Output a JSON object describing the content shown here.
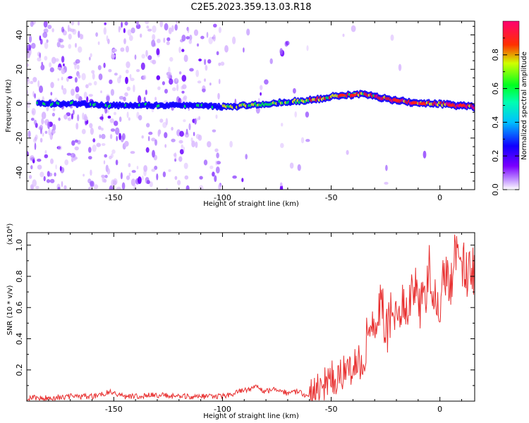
{
  "title": "C2E5.2023.359.13.03.R18",
  "colors": {
    "snr_line": "#e83030",
    "background": "#ffffff",
    "axis": "#000000",
    "colormap": [
      "#ffffff",
      "#d9b8ff",
      "#a060ff",
      "#6a00ff",
      "#1000ff",
      "#00d8ff",
      "#00ff40",
      "#f0ff00",
      "#ff2020",
      "#ff0080"
    ]
  },
  "chart_data": [
    {
      "type": "heatmap",
      "name": "spectrogram",
      "title": "C2E5.2023.359.13.03.R18",
      "xlabel": "Height of straight line (km)",
      "ylabel": "Frequency (Hz)",
      "xlim": [
        -190,
        16
      ],
      "ylim": [
        -50,
        48
      ],
      "x_ticks": [
        -150,
        -100,
        -50,
        0
      ],
      "y_ticks": [
        -40,
        -20,
        0,
        20,
        40
      ],
      "x_tick_labels": [
        "-150",
        "-100",
        "-50",
        "0"
      ],
      "y_tick_labels": [
        "-40",
        "-20",
        "0",
        "20",
        "40"
      ],
      "signal_track": {
        "x": [
          -185,
          -170,
          -150,
          -130,
          -110,
          -100,
          -90,
          -80,
          -70,
          -60,
          -50,
          -45,
          -40,
          -35,
          -30,
          -25,
          -20,
          -15,
          -10,
          -5,
          0,
          5,
          10,
          16
        ],
        "frequency": [
          0,
          0,
          -1,
          -1,
          -1,
          -2,
          -1,
          0,
          1,
          2,
          4,
          5,
          5,
          6,
          4,
          3,
          2,
          1,
          0,
          0,
          0,
          -1,
          -1,
          -2
        ]
      },
      "colorbar": {
        "label": "Normalized spectral amplitude",
        "range": [
          0,
          1
        ],
        "ticks": [
          0.0,
          0.2,
          0.4,
          0.6,
          0.8
        ],
        "tick_labels": [
          "0.0",
          "0.2",
          "0.4",
          "0.6",
          "0.8"
        ]
      }
    },
    {
      "type": "line",
      "name": "snr",
      "xlabel": "Height of straight line (km)",
      "ylabel": "SNR (10 * v/v)",
      "y_scale_label": "(x10⁴)",
      "xlim": [
        -190,
        16
      ],
      "ylim": [
        0,
        1.08
      ],
      "x_ticks": [
        -150,
        -100,
        -50,
        0
      ],
      "y_ticks": [
        0.2,
        0.4,
        0.6,
        0.8,
        1.0
      ],
      "x_tick_labels": [
        "-150",
        "-100",
        "-50",
        "0"
      ],
      "y_tick_labels": [
        "0.2",
        "0.4",
        "0.6",
        "0.8",
        "1.0"
      ],
      "series": [
        {
          "x": [
            -190,
            -180,
            -170,
            -160,
            -152,
            -145,
            -140,
            -130,
            -120,
            -110,
            -100,
            -95,
            -90,
            -85,
            -80,
            -75,
            -70,
            -65,
            -60,
            -55,
            -50,
            -47,
            -45,
            -42,
            -40,
            -37,
            -35,
            -33,
            -31,
            -29,
            -27,
            -25,
            -23,
            -21,
            -19,
            -17,
            -15,
            -13,
            -11,
            -9,
            -7,
            -5,
            -3,
            -1,
            1,
            3,
            5,
            7,
            9,
            11,
            13,
            16
          ],
          "values": [
            0.02,
            0.02,
            0.03,
            0.03,
            0.06,
            0.03,
            0.03,
            0.04,
            0.03,
            0.03,
            0.03,
            0.05,
            0.07,
            0.09,
            0.06,
            0.08,
            0.05,
            0.06,
            0.03,
            0.08,
            0.15,
            0.12,
            0.18,
            0.22,
            0.2,
            0.25,
            0.18,
            0.55,
            0.5,
            0.45,
            0.7,
            0.4,
            0.55,
            0.6,
            0.5,
            0.62,
            0.58,
            0.68,
            0.72,
            0.6,
            0.62,
            0.88,
            0.65,
            0.58,
            0.72,
            0.85,
            0.7,
            0.95,
            0.82,
            0.88,
            0.8,
            0.85
          ]
        }
      ]
    }
  ]
}
